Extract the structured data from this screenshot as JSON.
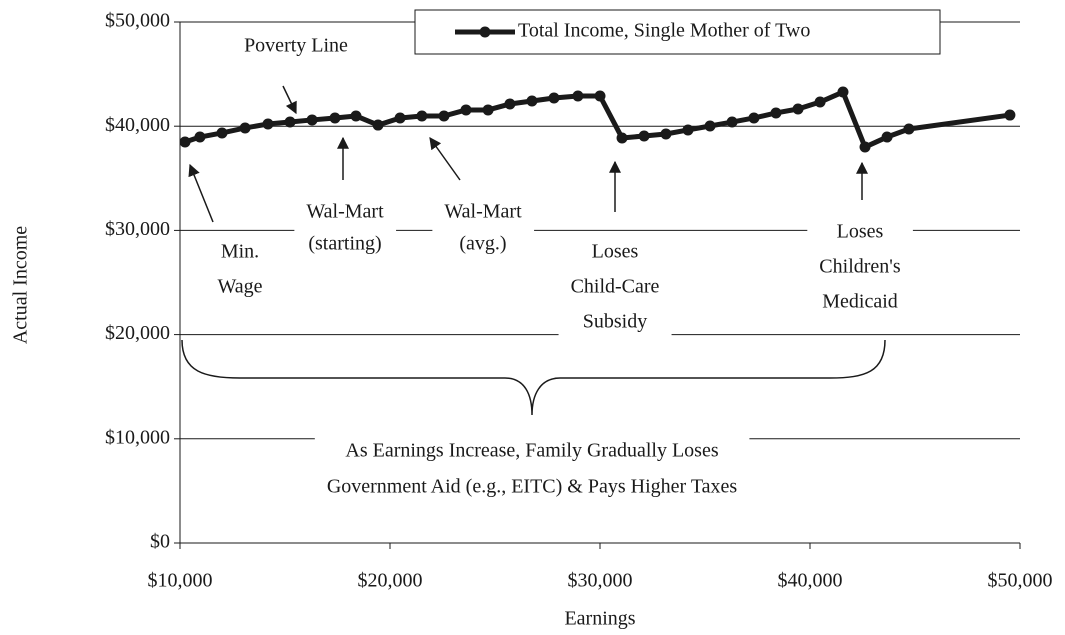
{
  "chart_data": {
    "type": "line",
    "x_label": "Earnings",
    "y_label": "Actual Income",
    "x": [
      10240,
      10950,
      12000,
      13100,
      14190,
      15240,
      16290,
      17380,
      18380,
      19430,
      20480,
      21520,
      22570,
      23620,
      24670,
      25710,
      26760,
      27810,
      28950,
      30000,
      31050,
      32100,
      33140,
      34190,
      35240,
      36290,
      37330,
      38380,
      39430,
      40480,
      41570,
      42620,
      43670,
      44710,
      49520
    ],
    "series": [
      {
        "name": "Total Income, Single Mother of Two",
        "color": "#1a1a1a",
        "values": [
          38480,
          38960,
          39350,
          39830,
          40210,
          40400,
          40600,
          40790,
          40980,
          40110,
          40790,
          40980,
          40980,
          41560,
          41560,
          42130,
          42420,
          42710,
          42900,
          42900,
          38870,
          39060,
          39250,
          39640,
          40020,
          40400,
          40790,
          41270,
          41650,
          42320,
          43280,
          38000,
          38960,
          39730,
          41070
        ]
      }
    ],
    "xlim": [
      10000,
      50000
    ],
    "xticks": [
      {
        "value": 10000,
        "label": "$10,000"
      },
      {
        "value": 20000,
        "label": "$20,000"
      },
      {
        "value": 30000,
        "label": "$30,000"
      },
      {
        "value": 40000,
        "label": "$40,000"
      },
      {
        "value": 50000,
        "label": "$50,000"
      }
    ],
    "ylim": [
      0,
      50000
    ],
    "yticks": [
      {
        "value": 0,
        "label": "$0"
      },
      {
        "value": 10000,
        "label": "$10,000"
      },
      {
        "value": 20000,
        "label": "$20,000"
      },
      {
        "value": 30000,
        "label": "$30,000"
      },
      {
        "value": 40000,
        "label": "$40,000"
      },
      {
        "value": 50000,
        "label": "$50,000"
      }
    ],
    "grid": true,
    "legend": "top-right",
    "annotations": [
      [
        "Poverty Line"
      ],
      [
        "Min.",
        "Wage"
      ],
      [
        "Wal-Mart",
        "(starting)"
      ],
      [
        "Wal-Mart",
        "(avg.)"
      ],
      [
        "Loses",
        "Child-Care",
        "Subsidy"
      ],
      [
        "Loses",
        "Children's",
        "Medicaid"
      ],
      [
        "As Earnings Increase, Family Gradually Loses",
        "Government Aid (e.g., EITC) & Pays Higher Taxes"
      ]
    ]
  }
}
